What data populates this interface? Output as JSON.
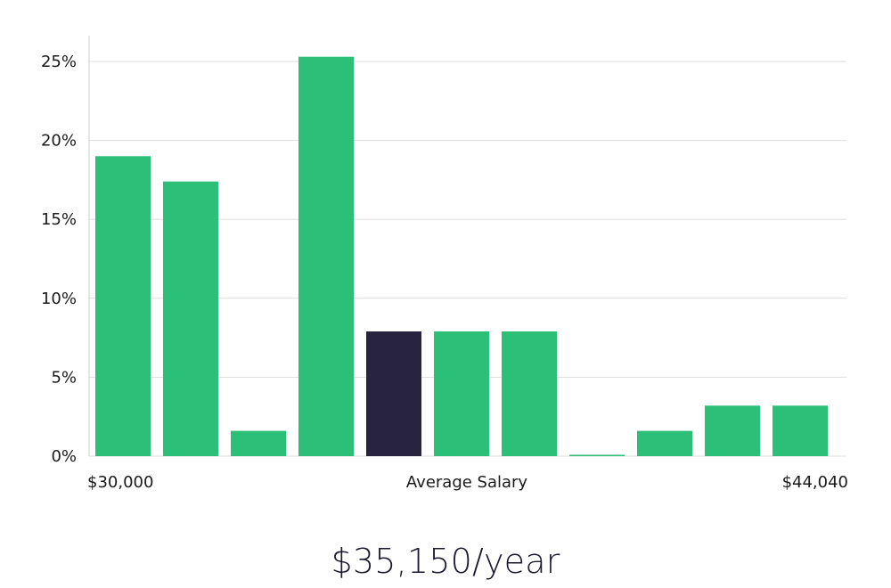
{
  "headline": "$35,150/year",
  "colors": {
    "bar": "#2bbf77",
    "highlight_bar": "#28243f",
    "grid": "#dddddd",
    "axis": "#cccccc"
  },
  "chart_data": {
    "type": "bar",
    "values": [
      19.0,
      17.4,
      1.6,
      25.3,
      7.9,
      7.9,
      7.9,
      0.0,
      1.6,
      3.2,
      3.2
    ],
    "highlight_index": 4,
    "ylim": [
      0,
      26.5
    ],
    "yticks": [
      0,
      5,
      10,
      15,
      20,
      25
    ],
    "ytick_labels": [
      "0%",
      "5%",
      "10%",
      "15%",
      "20%",
      "25%"
    ],
    "x_labels": {
      "left": "$30,000",
      "center": "Average Salary",
      "right": "$44,040"
    },
    "grid": true
  }
}
